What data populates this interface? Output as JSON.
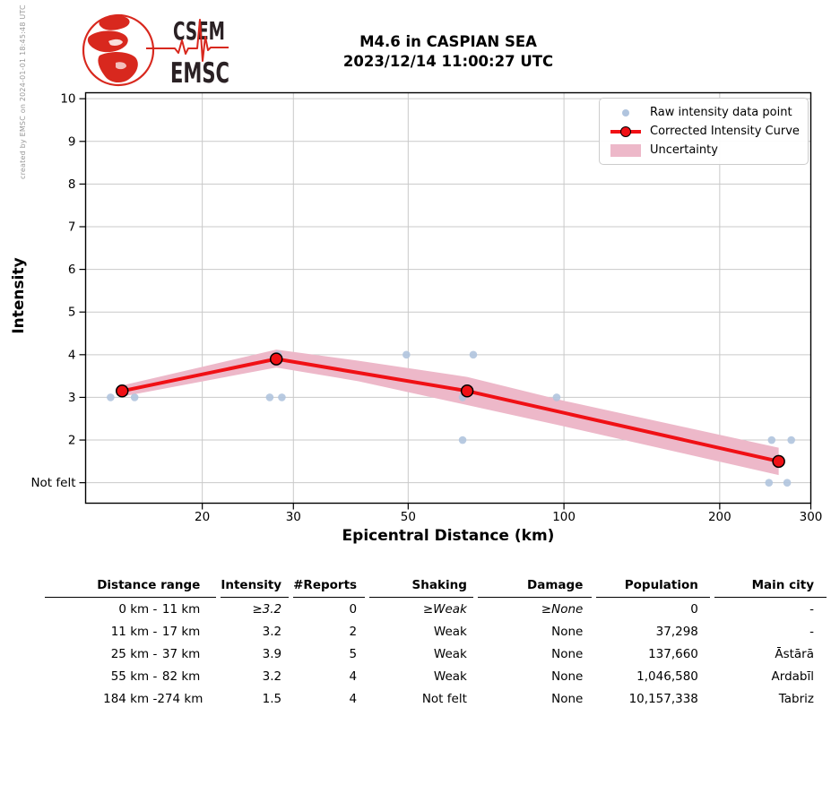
{
  "header": {
    "logo_line1": "CSEM",
    "logo_line2": "EMSC",
    "title_line1": "M4.6 in CASPIAN SEA",
    "title_line2": "2023/12/14 11:00:27 UTC",
    "credit": "created by EMSC on 2024-01-01 18:45:48 UTC"
  },
  "chart_data": {
    "type": "line",
    "title": "M4.6 in CASPIAN SEA 2023/12/14 11:00:27 UTC",
    "xlabel": "Epicentral Distance (km)",
    "ylabel": "Intensity",
    "x_scale": "log",
    "xlim": [
      11.9,
      300
    ],
    "ylim": [
      0.52,
      10.14
    ],
    "grid": true,
    "legend_position": "upper right",
    "x_ticks": [
      20,
      30,
      50,
      100,
      200,
      300
    ],
    "y_tick_values": [
      1,
      2,
      3,
      4,
      5,
      6,
      7,
      8,
      9,
      10
    ],
    "y_tick_labels": [
      "Not felt",
      "2",
      "3",
      "4",
      "5",
      "6",
      "7",
      "8",
      "9",
      "10"
    ],
    "series": [
      {
        "name": "Raw intensity data point",
        "type": "scatter",
        "color": "#b0c4de",
        "points": [
          [
            13.3,
            3
          ],
          [
            14.8,
            3
          ],
          [
            27,
            3
          ],
          [
            28.5,
            3
          ],
          [
            28,
            4
          ],
          [
            49.6,
            4
          ],
          [
            66.8,
            4
          ],
          [
            63.7,
            3
          ],
          [
            96.8,
            3
          ],
          [
            63.7,
            2
          ],
          [
            252,
            2
          ],
          [
            275,
            2
          ],
          [
            249,
            1
          ],
          [
            270,
            1
          ]
        ]
      },
      {
        "name": "Corrected Intensity Curve",
        "type": "line",
        "color": "#f01015",
        "marker_edge": "#000000",
        "points": [
          [
            14,
            3.15
          ],
          [
            27.8,
            3.9
          ],
          [
            65,
            3.15
          ],
          [
            260,
            1.5
          ]
        ]
      },
      {
        "name": "Uncertainty",
        "type": "band",
        "color": "#edb8c9",
        "x": [
          14,
          27.8,
          40,
          65,
          100,
          260
        ],
        "upper": [
          3.28,
          4.12,
          3.86,
          3.48,
          2.92,
          1.82
        ],
        "lower": [
          3.02,
          3.7,
          3.38,
          2.82,
          2.32,
          1.18
        ]
      }
    ]
  },
  "table": {
    "headers": [
      "Distance range",
      "Intensity",
      "#Reports",
      "Shaking",
      "Damage",
      "Population",
      "Main city"
    ],
    "rows": [
      {
        "range_min": "0 km -",
        "range_max": "11 km",
        "intensity": "≥3.2",
        "reports": "0",
        "shaking": "≥Weak",
        "damage": "≥None",
        "population": "0",
        "city": "-",
        "estimated": true
      },
      {
        "range_min": "11 km -",
        "range_max": "17 km",
        "intensity": "3.2",
        "reports": "2",
        "shaking": "Weak",
        "damage": "None",
        "population": "37,298",
        "city": "-"
      },
      {
        "range_min": "25 km -",
        "range_max": "37 km",
        "intensity": "3.9",
        "reports": "5",
        "shaking": "Weak",
        "damage": "None",
        "population": "137,660",
        "city": "Āstārā"
      },
      {
        "range_min": "55 km -",
        "range_max": "82 km",
        "intensity": "3.2",
        "reports": "4",
        "shaking": "Weak",
        "damage": "None",
        "population": "1,046,580",
        "city": "Ardabīl"
      },
      {
        "range_min": "184 km -",
        "range_max": "274 km",
        "intensity": "1.5",
        "reports": "4",
        "shaking": "Not felt",
        "damage": "None",
        "population": "10,157,338",
        "city": "Tabriz"
      }
    ]
  },
  "colors": {
    "curve": "#f01015",
    "band": "#edb8c9",
    "raw_point": "#b0c4de",
    "grid": "#c9c9c9",
    "logo_red": "#d8281e",
    "logo_dark": "#2a2124",
    "credit_gray": "#999999"
  }
}
